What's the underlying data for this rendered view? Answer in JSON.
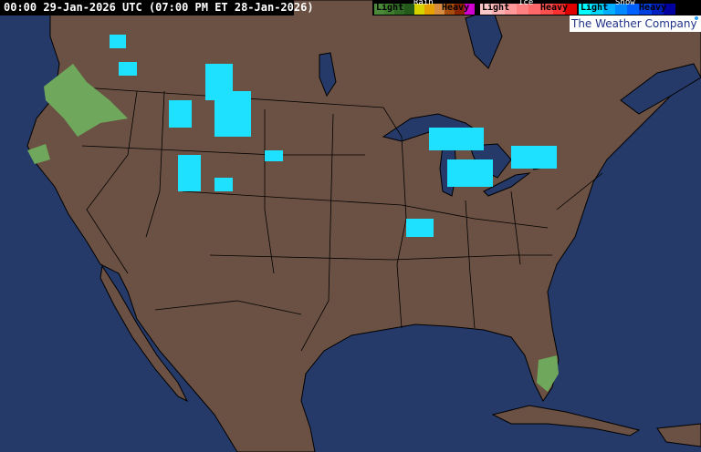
{
  "header": {
    "timestamp": "00:00 29-Jan-2026 UTC  (07:00 PM ET 28-Jan-2026)"
  },
  "legend": {
    "rain": {
      "title": "Rain",
      "light": "Light",
      "heavy": "Heavy",
      "colors": [
        "#4b8a3a",
        "#3f7d2f",
        "#2f6a24",
        "#235a1a",
        "#d7d300",
        "#e5a100",
        "#d78c40",
        "#a64d10",
        "#8b2400",
        "#d000d0"
      ]
    },
    "ice": {
      "title": "Ice",
      "light": "Light",
      "heavy": "Heavy",
      "colors": [
        "#ffc8c8",
        "#ffb0b0",
        "#ff9898",
        "#ff8080",
        "#ff6868",
        "#ff5050",
        "#ff3030",
        "#e00000"
      ]
    },
    "snow": {
      "title": "Snow",
      "light": "Light",
      "heavy": "Heavy",
      "colors": [
        "#00ffff",
        "#00d8ff",
        "#00b0ff",
        "#0088ff",
        "#0060ff",
        "#0040e0",
        "#0020c0",
        "#0000a0"
      ]
    }
  },
  "brand": {
    "name": "The Weather Company"
  },
  "colors": {
    "ocean": "#253a69",
    "land": "#6b5143",
    "border": "#000000",
    "rain": "#6fa85c",
    "snow": "#1ee0ff"
  }
}
